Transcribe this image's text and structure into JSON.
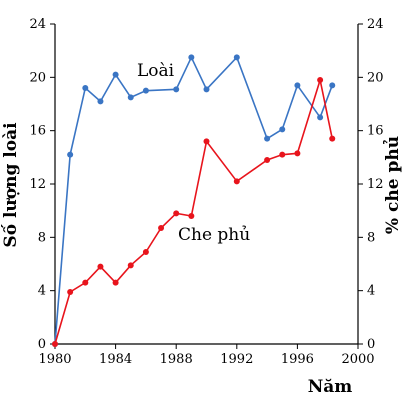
{
  "chart_data": {
    "type": "line",
    "xlabel": "Năm",
    "ylabel_left": "Số lượng loài",
    "ylabel_right": "% che phủ",
    "xlim": [
      1980,
      2000
    ],
    "ylim": [
      0,
      24
    ],
    "xticks": [
      1980,
      1984,
      1988,
      1992,
      1996,
      2000
    ],
    "yticks": [
      0,
      4,
      8,
      12,
      16,
      20,
      24
    ],
    "grid": false,
    "series": [
      {
        "name": "Loài",
        "color": "#3a75c4",
        "axis": "left",
        "x": [
          1980,
          1981,
          1982,
          1983,
          1984,
          1985,
          1986,
          1988,
          1989,
          1990,
          1992,
          1994,
          1995,
          1996,
          1997.5,
          1998.3
        ],
        "y": [
          0,
          14.2,
          19.2,
          18.2,
          20.2,
          18.5,
          19.0,
          19.1,
          21.5,
          19.1,
          21.5,
          15.4,
          16.1,
          19.4,
          17.0,
          19.4
        ]
      },
      {
        "name": "Che phủ",
        "color": "#e8141c",
        "axis": "right",
        "x": [
          1980,
          1981,
          1982,
          1983,
          1984,
          1985,
          1986,
          1987,
          1988,
          1989,
          1990,
          1992,
          1994,
          1995,
          1996,
          1997.5,
          1998.3
        ],
        "y": [
          0,
          3.9,
          4.6,
          5.8,
          4.6,
          5.9,
          6.9,
          8.7,
          9.8,
          9.6,
          15.2,
          12.2,
          13.8,
          14.2,
          14.3,
          19.8,
          15.4
        ]
      }
    ]
  }
}
